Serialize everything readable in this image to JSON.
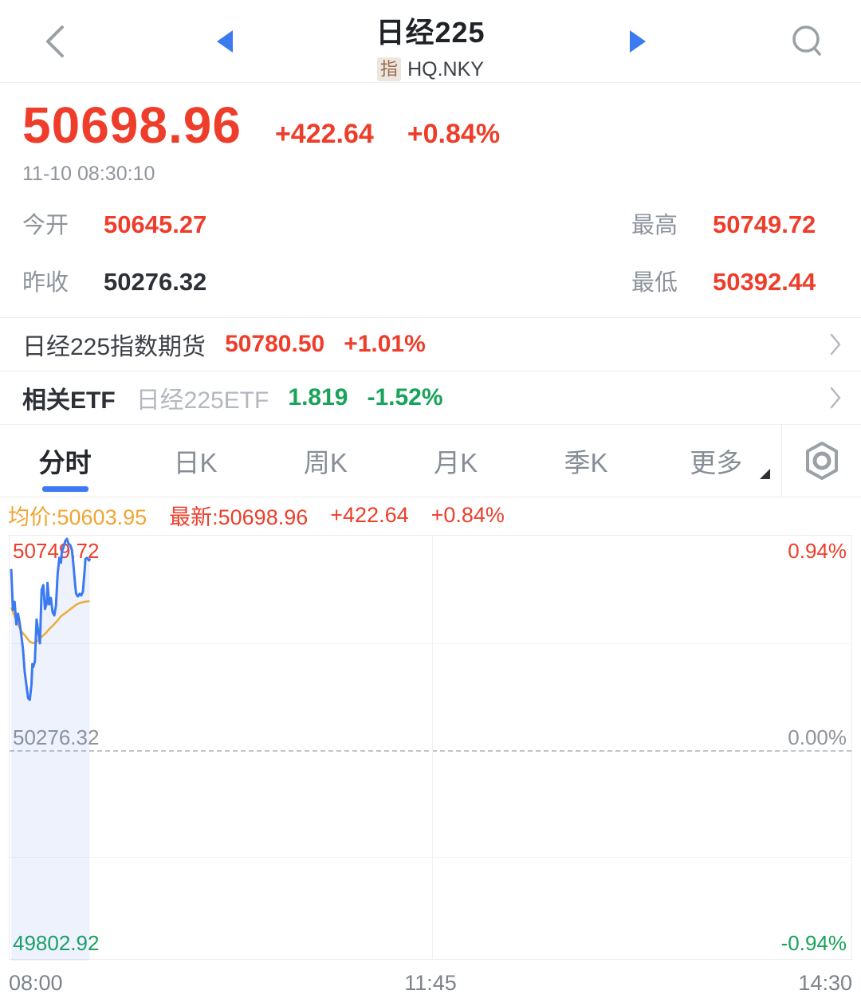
{
  "header": {
    "title": "日经225",
    "type_badge": "指",
    "symbol": "HQ.NKY"
  },
  "quote": {
    "price": "50698.96",
    "change": "+422.64",
    "change_pct": "+0.84%",
    "timestamp": "11-10 08:30:10",
    "stats": [
      {
        "label": "今开",
        "value": "50645.27",
        "color": "up"
      },
      {
        "label": "最高",
        "value": "50749.72",
        "color": "up"
      },
      {
        "label": "昨收",
        "value": "50276.32",
        "color": "flat"
      },
      {
        "label": "最低",
        "value": "50392.44",
        "color": "up"
      }
    ]
  },
  "futures_row": {
    "label": "日经225指数期货",
    "price": "50780.50",
    "change_pct": "+1.01%"
  },
  "etf_row": {
    "label": "相关ETF",
    "name": "日经225ETF",
    "price": "1.819",
    "change_pct": "-1.52%"
  },
  "tabs": [
    {
      "label": "分时",
      "active": true
    },
    {
      "label": "日K"
    },
    {
      "label": "周K"
    },
    {
      "label": "月K"
    },
    {
      "label": "季K"
    },
    {
      "label": "更多",
      "has_caret": true
    }
  ],
  "chart_info": {
    "avg": "均价:50603.95",
    "last": "最新:50698.96",
    "change": "+422.64",
    "change_pct": "+0.84%"
  },
  "chart_data": {
    "type": "line",
    "title": "分时 (intraday) 日经225",
    "prev_close": 50276.32,
    "open": 50645.27,
    "high": 50749.72,
    "low": 50392.44,
    "last": 50698.96,
    "avg": 50603.95,
    "pct_range": 0.94,
    "y_axis_left": [
      "50749.72",
      "50276.32",
      "49802.92"
    ],
    "y_axis_right": [
      "0.94%",
      "0.00%",
      "-0.94%"
    ],
    "x_axis": [
      "08:00",
      "11:45",
      "14:30"
    ],
    "grid": "on",
    "series": [
      {
        "name": "price",
        "points": [
          [
            0.002,
            0.79
          ],
          [
            0.004,
            0.616
          ],
          [
            0.006,
            0.651
          ],
          [
            0.008,
            0.553
          ],
          [
            0.01,
            0.599
          ],
          [
            0.012,
            0.557
          ],
          [
            0.014,
            0.505
          ],
          [
            0.016,
            0.442
          ],
          [
            0.018,
            0.345
          ],
          [
            0.02,
            0.285
          ],
          [
            0.022,
            0.23
          ],
          [
            0.024,
            0.223
          ],
          [
            0.026,
            0.292
          ],
          [
            0.027,
            0.379
          ],
          [
            0.028,
            0.366
          ],
          [
            0.03,
            0.39
          ],
          [
            0.032,
            0.574
          ],
          [
            0.034,
            0.519
          ],
          [
            0.036,
            0.47
          ],
          [
            0.038,
            0.703
          ],
          [
            0.04,
            0.724
          ],
          [
            0.042,
            0.62
          ],
          [
            0.044,
            0.644
          ],
          [
            0.045,
            0.734
          ],
          [
            0.047,
            0.64
          ],
          [
            0.049,
            0.668
          ],
          [
            0.051,
            0.606
          ],
          [
            0.053,
            0.592
          ],
          [
            0.055,
            0.634
          ],
          [
            0.057,
            0.773
          ],
          [
            0.059,
            0.843
          ],
          [
            0.061,
            0.822
          ],
          [
            0.062,
            0.87
          ],
          [
            0.064,
            0.891
          ],
          [
            0.066,
            0.916
          ],
          [
            0.068,
            0.926
          ],
          [
            0.07,
            0.905
          ],
          [
            0.072,
            0.898
          ],
          [
            0.074,
            0.877
          ],
          [
            0.076,
            0.801
          ],
          [
            0.078,
            0.717
          ],
          [
            0.079,
            0.686
          ],
          [
            0.081,
            0.675
          ],
          [
            0.083,
            0.686
          ],
          [
            0.085,
            0.679
          ],
          [
            0.087,
            0.696
          ],
          [
            0.089,
            0.79
          ],
          [
            0.09,
            0.839
          ],
          [
            0.092,
            0.843
          ],
          [
            0.094,
            0.832
          ],
          [
            0.095,
            0.836
          ]
        ]
      },
      {
        "name": "avg",
        "points": [
          [
            0.002,
            0.627
          ],
          [
            0.006,
            0.588
          ],
          [
            0.01,
            0.553
          ],
          [
            0.014,
            0.522
          ],
          [
            0.019,
            0.501
          ],
          [
            0.024,
            0.477
          ],
          [
            0.028,
            0.47
          ],
          [
            0.033,
            0.48
          ],
          [
            0.038,
            0.498
          ],
          [
            0.043,
            0.515
          ],
          [
            0.047,
            0.532
          ],
          [
            0.052,
            0.55
          ],
          [
            0.057,
            0.57
          ],
          [
            0.061,
            0.588
          ],
          [
            0.066,
            0.602
          ],
          [
            0.071,
            0.616
          ],
          [
            0.076,
            0.63
          ],
          [
            0.08,
            0.641
          ],
          [
            0.085,
            0.648
          ],
          [
            0.09,
            0.652
          ],
          [
            0.095,
            0.654
          ]
        ]
      }
    ]
  },
  "colors": {
    "up": "#ee3e2b",
    "down": "#17a35b",
    "accent_blue": "#3b7af0",
    "avg_orange": "#eeab3c",
    "area_fill": "rgba(76,125,235,0.10)"
  }
}
